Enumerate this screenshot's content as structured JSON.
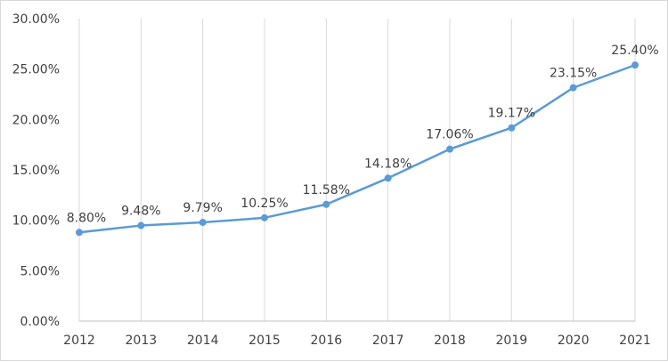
{
  "chart_data": {
    "type": "line",
    "title": "",
    "xlabel": "",
    "ylabel": "",
    "categories": [
      "2012",
      "2013",
      "2014",
      "2015",
      "2016",
      "2017",
      "2018",
      "2019",
      "2020",
      "2021"
    ],
    "series": [
      {
        "values": [
          8.8,
          9.48,
          9.79,
          10.25,
          11.58,
          14.18,
          17.06,
          19.17,
          23.15,
          25.4
        ],
        "labels": [
          "8.80%",
          "9.48%",
          "9.79%",
          "10.25%",
          "11.58%",
          "14.18%",
          "17.06%",
          "19.17%",
          "23.15%",
          "25.40%"
        ],
        "color": "#5b9bd5"
      }
    ],
    "ylim": [
      0,
      30
    ],
    "yticks": [
      "0.00%",
      "5.00%",
      "10.00%",
      "15.00%",
      "20.00%",
      "25.00%",
      "30.00%"
    ],
    "grid": "vertical",
    "legend": "none"
  }
}
